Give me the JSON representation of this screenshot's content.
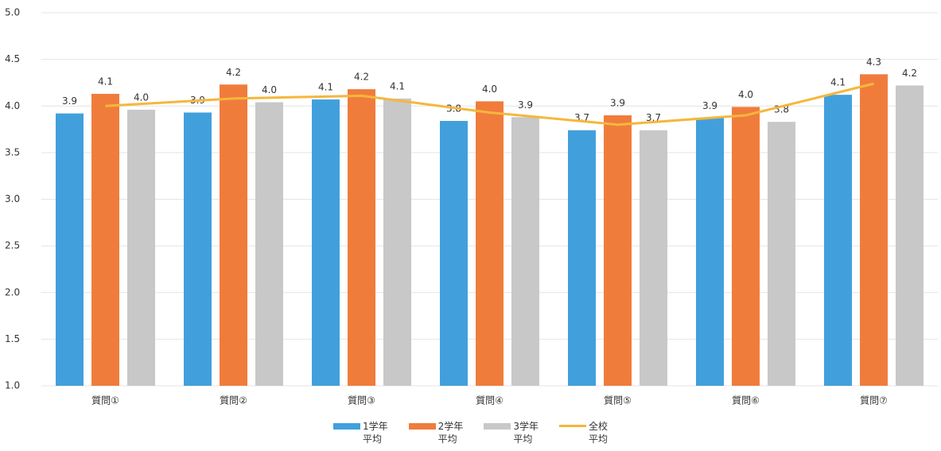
{
  "chart_data": {
    "type": "bar",
    "categories": [
      "質問①",
      "質問②",
      "質問③",
      "質問④",
      "質問⑤",
      "質問⑥",
      "質問⑦"
    ],
    "series": [
      {
        "name": "1学年\n平均",
        "color": "#41a0dc",
        "values": [
          3.92,
          3.93,
          4.07,
          3.84,
          3.74,
          3.87,
          4.12
        ],
        "value_labels": [
          "3.9",
          "3.9",
          "4.1",
          "3.8",
          "3.7",
          "3.9",
          "4.1"
        ]
      },
      {
        "name": "2学年\n平均",
        "color": "#f07c3c",
        "values": [
          4.13,
          4.23,
          4.18,
          4.05,
          3.9,
          3.99,
          4.34
        ],
        "value_labels": [
          "4.1",
          "4.2",
          "4.2",
          "4.0",
          "3.9",
          "4.0",
          "4.3"
        ]
      },
      {
        "name": "3学年\n平均",
        "color": "#c8c8c8",
        "values": [
          3.96,
          4.04,
          4.08,
          3.88,
          3.74,
          3.83,
          4.22
        ],
        "value_labels": [
          "4.0",
          "4.0",
          "4.1",
          "3.9",
          "3.7",
          "3.8",
          "4.2"
        ]
      },
      {
        "name": "全校\n平均",
        "color": "#f5b73c",
        "type": "line",
        "values": [
          4.0,
          4.08,
          4.11,
          3.93,
          3.8,
          3.9,
          4.24
        ]
      }
    ],
    "ylim": [
      1.0,
      5.0
    ],
    "yticks": [
      {
        "value": 1.0,
        "label": "1.0"
      },
      {
        "value": 1.5,
        "label": "1.5"
      },
      {
        "value": 2.0,
        "label": "2.0"
      },
      {
        "value": 2.5,
        "label": "2.5"
      },
      {
        "value": 3.0,
        "label": "3.0"
      },
      {
        "value": 3.5,
        "label": "3.5"
      },
      {
        "value": 4.0,
        "label": "4.0"
      },
      {
        "value": 4.5,
        "label": "4.5"
      },
      {
        "value": 5.0,
        "label": "5.0"
      }
    ],
    "grid": true,
    "legend": "bottom"
  }
}
